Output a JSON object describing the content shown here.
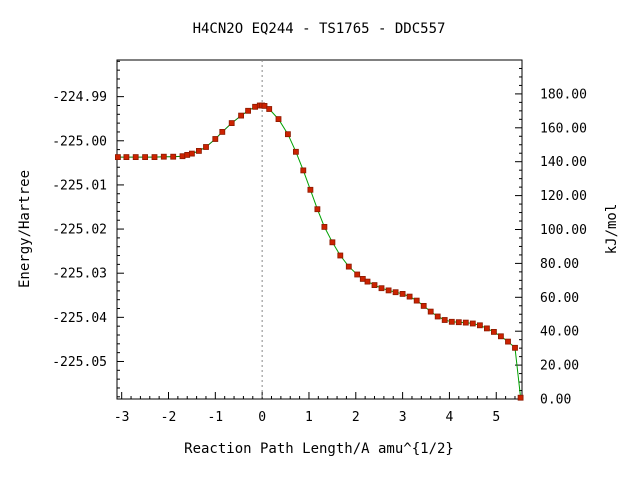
{
  "chart_data": {
    "type": "line",
    "title": "H4CN2O    EQ244 - TS1765 - DDC557",
    "xlabel": "Reaction Path Length/A amu^{1/2}",
    "ylabel": "Energy/Hartree",
    "y2label": "kJ/mol",
    "xlim": [
      -3.1,
      5.55
    ],
    "ylim": [
      -225.0585,
      -224.9817
    ],
    "y2lim": [
      0,
      200
    ],
    "x_ticks": [
      -3,
      -2,
      -1,
      0,
      1,
      2,
      3,
      4,
      5
    ],
    "x_tick_labels": [
      "-3",
      "-2",
      "-1",
      "0",
      "1",
      "2",
      "3",
      "4",
      "5"
    ],
    "y_ticks": [
      -224.99,
      -225.0,
      -225.01,
      -225.02,
      -225.03,
      -225.04,
      -225.05
    ],
    "y_tick_labels": [
      "-224.99",
      "-225.00",
      "-225.01",
      "-225.02",
      "-225.03",
      "-225.04",
      "-225.05"
    ],
    "y2_ticks": [
      0,
      20,
      40,
      60,
      80,
      100,
      120,
      140,
      160,
      180
    ],
    "y2_tick_labels": [
      "0.00",
      "20.00",
      "40.00",
      "60.00",
      "80.00",
      "100.00",
      "120.00",
      "140.00",
      "160.00",
      "180.00"
    ],
    "ts_marker_x": 0,
    "grid": false,
    "colors": {
      "left_curve": "#008000",
      "right_curve": "#00a000",
      "points": "#cc2200",
      "point_edge": "#8b1a00",
      "ts_line": "#888888",
      "axis": "#000000"
    },
    "series": [
      {
        "x": [
          -3.08,
          -2.9,
          -2.7,
          -2.5,
          -2.3,
          -2.1,
          -1.9,
          -1.7,
          -1.6,
          -1.5,
          -1.35,
          -1.2,
          -1.0,
          -0.85,
          -0.65,
          -0.45,
          -0.3,
          -0.15,
          -0.05,
          0.0,
          0.05,
          0.15,
          0.35,
          0.55,
          0.72,
          0.88,
          1.03,
          1.18,
          1.33,
          1.5,
          1.67,
          1.85,
          2.03,
          2.15,
          2.25,
          2.4,
          2.55,
          2.7,
          2.85,
          3.0,
          3.15,
          3.3,
          3.45,
          3.6,
          3.75,
          3.9,
          4.05,
          4.2,
          4.35,
          4.5,
          4.65,
          4.8,
          4.95,
          5.1,
          5.25,
          5.4,
          5.52
        ],
        "values": [
          -225.0037,
          -225.0037,
          -225.0037,
          -225.0037,
          -225.0037,
          -225.0036,
          -225.0036,
          -225.0035,
          -225.0032,
          -225.0029,
          -225.0023,
          -225.0014,
          -224.9996,
          -224.998,
          -224.996,
          -224.9943,
          -224.9932,
          -224.9923,
          -224.992,
          -224.992,
          -224.9921,
          -224.9928,
          -224.9951,
          -224.9985,
          -225.0025,
          -225.0067,
          -225.0111,
          -225.0155,
          -225.0195,
          -225.023,
          -225.026,
          -225.0285,
          -225.0303,
          -225.0313,
          -225.0319,
          -225.0327,
          -225.0334,
          -225.0339,
          -225.0343,
          -225.0347,
          -225.0353,
          -225.0362,
          -225.0374,
          -225.0387,
          -225.0398,
          -225.0406,
          -225.041,
          -225.0411,
          -225.0412,
          -225.0414,
          -225.0418,
          -225.0425,
          -225.0433,
          -225.0443,
          -225.0455,
          -225.0469,
          -225.0582
        ]
      }
    ]
  }
}
